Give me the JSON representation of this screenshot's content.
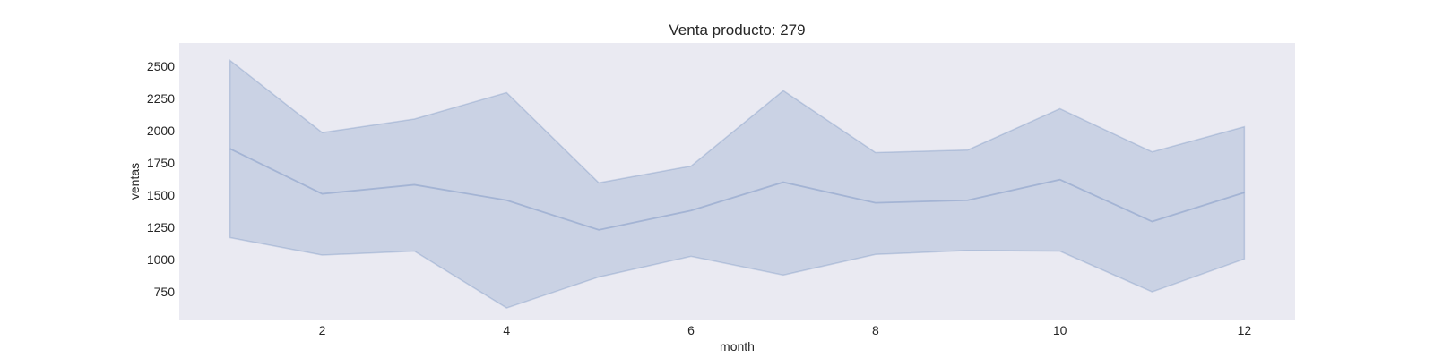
{
  "chart_data": {
    "type": "line",
    "title": "Venta producto: 279",
    "xlabel": "month",
    "ylabel": "ventas",
    "xlim": [
      0.45,
      12.55
    ],
    "ylim": [
      535,
      2680
    ],
    "x_ticks": [
      2,
      4,
      6,
      8,
      10,
      12
    ],
    "y_ticks": [
      750,
      1000,
      1250,
      1500,
      1750,
      2000,
      2250,
      2500
    ],
    "grid": false,
    "legend": "none",
    "background_color": "#EAEAF2",
    "series": [
      {
        "x": [
          1,
          2,
          3,
          4,
          5,
          6,
          7,
          8,
          9,
          10,
          11,
          12
        ],
        "values": [
          1860,
          1510,
          1580,
          1460,
          1230,
          1380,
          1600,
          1440,
          1460,
          1620,
          1295,
          1520
        ],
        "band_upper": [
          2545,
          1985,
          2090,
          2295,
          1595,
          1725,
          2310,
          1830,
          1850,
          2170,
          1835,
          2030
        ],
        "band_lower": [
          1170,
          1035,
          1065,
          625,
          865,
          1025,
          880,
          1040,
          1070,
          1065,
          750,
          1005
        ],
        "color": "#4C72B0"
      }
    ]
  }
}
